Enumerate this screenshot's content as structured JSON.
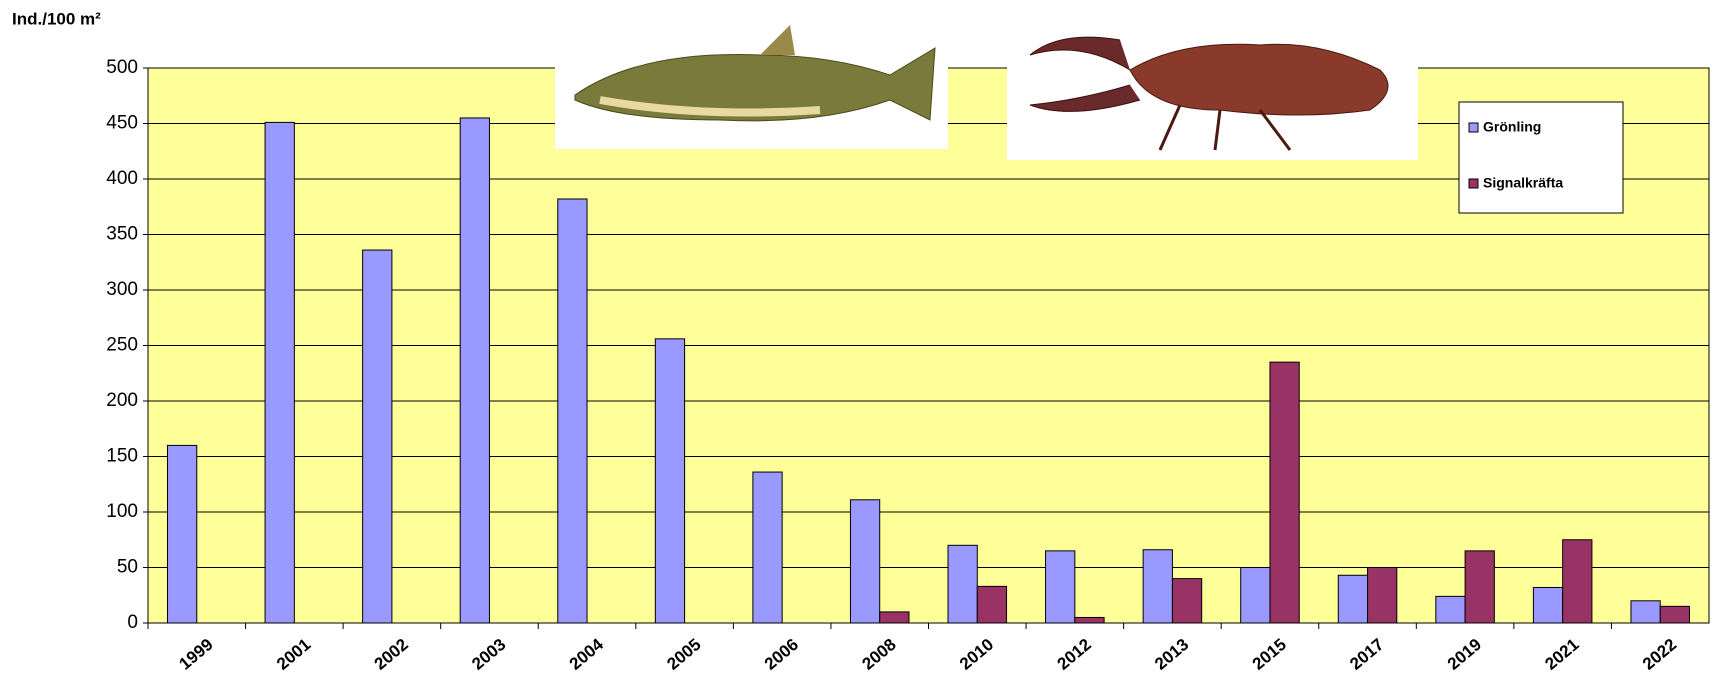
{
  "chart_data": {
    "type": "bar",
    "y_label": "Ind./100 m²",
    "categories": [
      "1999",
      "2001",
      "2002",
      "2003",
      "2004",
      "2005",
      "2006",
      "2008",
      "2010",
      "2012",
      "2013",
      "2015",
      "2017",
      "2019",
      "2021",
      "2022"
    ],
    "series": [
      {
        "name": "Grönling",
        "color": "#9999ff",
        "values": [
          160,
          451,
          336,
          455,
          382,
          256,
          136,
          111,
          70,
          65,
          66,
          50,
          43,
          24,
          32,
          20
        ]
      },
      {
        "name": "Signalkräfta",
        "color": "#993366",
        "values": [
          null,
          null,
          null,
          null,
          null,
          null,
          null,
          10,
          33,
          5,
          40,
          235,
          50,
          65,
          75,
          15
        ]
      }
    ],
    "ylim": [
      0,
      500
    ],
    "yticks": [
      0,
      50,
      100,
      150,
      200,
      250,
      300,
      350,
      400,
      450,
      500
    ],
    "grid": true,
    "legend": "top-right"
  }
}
